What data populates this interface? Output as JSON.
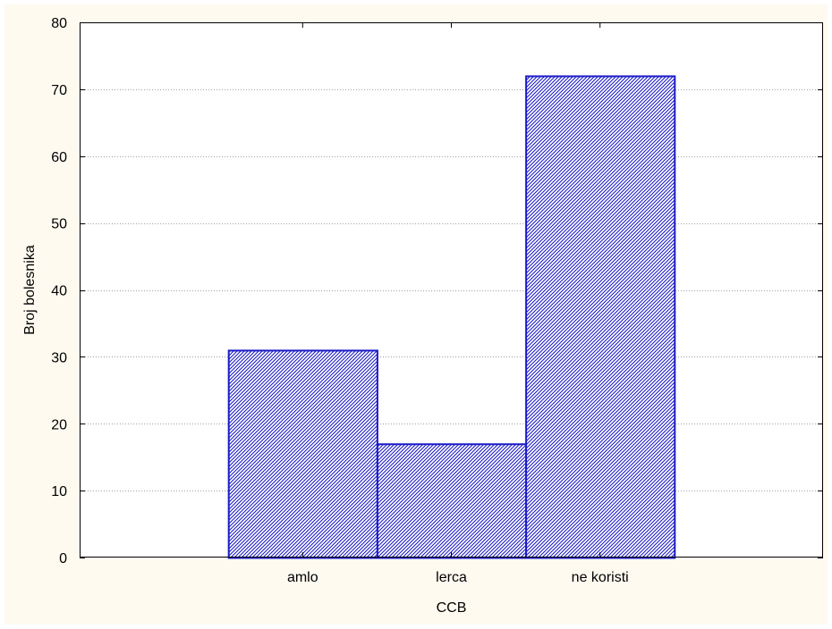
{
  "chart_data": {
    "type": "bar",
    "title": "",
    "xlabel": "CCB",
    "ylabel": "Broj bolesnika",
    "categories": [
      "amlo",
      "lerca",
      "ne koristi"
    ],
    "values": [
      31,
      17,
      72
    ],
    "ylim": [
      0,
      80
    ],
    "yticks": [
      0,
      10,
      20,
      30,
      40,
      50,
      60,
      70,
      80
    ],
    "grid": true,
    "legend": "none",
    "bar_fill": "hatched",
    "colors": {
      "bar_stroke": "#1c1cc8",
      "bar_hatch": "#1c1cc8",
      "plot_background": "#ffffff",
      "figure_background": "#fffaf0",
      "gridline": "#a0a0a0"
    }
  }
}
